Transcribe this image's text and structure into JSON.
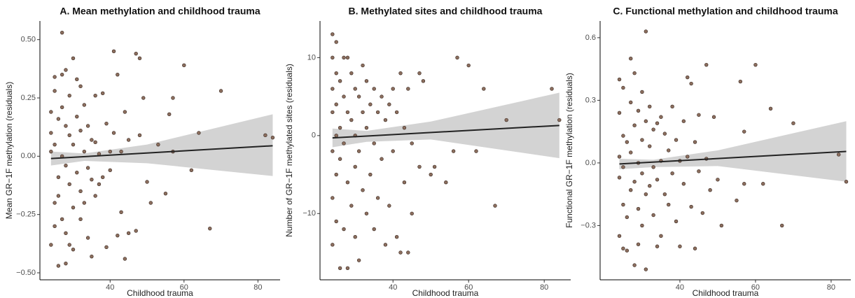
{
  "chart_data": [
    {
      "type": "scatter",
      "title": "A. Mean methylation and childhood trauma",
      "x_label": "Childhood trauma",
      "y_label": "Mean GR−1F methylation (residuals)",
      "xlim": [
        21,
        86
      ],
      "ylim": [
        -0.53,
        0.58
      ],
      "xticks": [
        40,
        60,
        80
      ],
      "yticks": [
        {
          "value": -0.5,
          "label": "−0.50"
        },
        {
          "value": -0.25,
          "label": "−0.25"
        },
        {
          "value": 0,
          "label": "0.00"
        },
        {
          "value": 0.25,
          "label": "0.25"
        },
        {
          "value": 0.5,
          "label": "0.50"
        }
      ],
      "color": "#8c6e5e",
      "fit_color": "#222222",
      "band_color": "#d3d3d3",
      "x": [
        24,
        24,
        24,
        24,
        25,
        25,
        25,
        25,
        25,
        26,
        26,
        26,
        26,
        27,
        27,
        27,
        27,
        27,
        28,
        28,
        28,
        28,
        28,
        29,
        29,
        29,
        29,
        30,
        30,
        30,
        30,
        31,
        31,
        31,
        32,
        32,
        32,
        32,
        33,
        33,
        33,
        34,
        34,
        34,
        35,
        35,
        35,
        36,
        36,
        36,
        37,
        37,
        38,
        38,
        39,
        39,
        40,
        40,
        41,
        41,
        42,
        42,
        43,
        43,
        44,
        44,
        45,
        45,
        47,
        47,
        48,
        48,
        49,
        50,
        51,
        53,
        55,
        56,
        57,
        57,
        60,
        62,
        64,
        67,
        70,
        82,
        84
      ],
      "values": [
        -0.38,
        0.19,
        0.1,
        0.02,
        0.28,
        0.34,
        -0.2,
        -0.3,
        0.05,
        -0.47,
        0.16,
        -0.09,
        -0.17,
        0.53,
        0.35,
        0.21,
        -0.27,
        0.0,
        -0.46,
        0.37,
        0.13,
        -0.04,
        -0.33,
        0.26,
        0.09,
        -0.12,
        -0.38,
        0.42,
        0.05,
        -0.22,
        -0.4,
        0.33,
        0.17,
        -0.07,
        0.3,
        0.11,
        -0.15,
        -0.27,
        0.22,
        0.02,
        -0.2,
        0.13,
        -0.05,
        -0.35,
        0.07,
        -0.1,
        -0.43,
        0.26,
        0.06,
        -0.17,
        -0.12,
        0.01,
        0.27,
        -0.09,
        0.14,
        -0.39,
        0.02,
        -0.06,
        0.45,
        0.1,
        0.35,
        -0.34,
        0.02,
        -0.24,
        0.19,
        -0.44,
        0.07,
        -0.33,
        0.44,
        -0.32,
        0.09,
        0.42,
        0.25,
        -0.11,
        -0.2,
        0.05,
        -0.16,
        0.18,
        0.25,
        0.02,
        0.39,
        -0.06,
        0.1,
        -0.31,
        0.28,
        0.09,
        0.08
      ],
      "fit": {
        "x": [
          24,
          84
        ],
        "values": [
          -0.01,
          0.045
        ]
      },
      "band": {
        "x": [
          24,
          33,
          50,
          84
        ],
        "upper": [
          0.02,
          0.012,
          0.05,
          0.18
        ],
        "lower": [
          -0.04,
          -0.02,
          -0.03,
          -0.085
        ]
      }
    },
    {
      "type": "scatter",
      "title": "B. Methylated sites and childhood trauma",
      "x_label": "Childhood trauma",
      "y_label": "Number of GR−1F methylated sites (residuals)",
      "xlim": [
        20.7,
        87
      ],
      "ylim": [
        -18.5,
        14.7
      ],
      "xticks": [
        40,
        60,
        80
      ],
      "yticks": [
        {
          "value": -10,
          "label": "−10"
        },
        0,
        10
      ],
      "color": "#8c6e5e",
      "fit_color": "#222222",
      "band_color": "#d3d3d3",
      "x": [
        24,
        24,
        24,
        24,
        24,
        24,
        24,
        25,
        25,
        25,
        25,
        25,
        25,
        26,
        26,
        26,
        26,
        27,
        27,
        27,
        27,
        28,
        28,
        28,
        28,
        29,
        29,
        29,
        30,
        30,
        30,
        30,
        31,
        31,
        31,
        32,
        32,
        32,
        33,
        33,
        33,
        34,
        34,
        35,
        35,
        35,
        36,
        36,
        37,
        37,
        38,
        38,
        39,
        39,
        40,
        40,
        41,
        41,
        42,
        42,
        43,
        43,
        44,
        44,
        45,
        45,
        47,
        47,
        48,
        50,
        51,
        54,
        56,
        57,
        60,
        62,
        64,
        67,
        70,
        82,
        84
      ],
      "values": [
        13,
        10,
        6,
        3,
        -2,
        -8,
        -14,
        12,
        8,
        4,
        0,
        -5,
        -11,
        7,
        1,
        -3,
        -17,
        10,
        5,
        -1,
        -12,
        10,
        3,
        -6,
        -17,
        8,
        2,
        -9,
        6,
        0,
        -4,
        -13,
        5,
        -2,
        -16,
        9,
        3,
        -7,
        7,
        1,
        -10,
        4,
        -5,
        6,
        -1,
        -12,
        3,
        -8,
        5,
        -3,
        2,
        -14,
        4,
        -9,
        6,
        -2,
        3,
        -13,
        8,
        -15,
        1,
        -6,
        6,
        -15,
        -1,
        -10,
        8,
        -4,
        7,
        -5,
        -4,
        -6,
        -2,
        10,
        9,
        -2,
        6,
        -9,
        2,
        6,
        2
      ],
      "fit": {
        "x": [
          24,
          84
        ],
        "values": [
          -0.3,
          1.3
        ]
      },
      "band": {
        "x": [
          24,
          33,
          50,
          84
        ],
        "upper": [
          0.9,
          0.6,
          1.8,
          5.5
        ],
        "lower": [
          -1.5,
          -0.8,
          -0.5,
          -2.9
        ]
      }
    },
    {
      "type": "scatter",
      "title": "C. Functional methylation and childhood trauma",
      "x_label": "Childhood trauma",
      "y_label": "Functional GR−1F methylation (residuals)",
      "xlim": [
        18.9,
        85.2
      ],
      "ylim": [
        -0.56,
        0.68
      ],
      "xticks": [
        40,
        60,
        80
      ],
      "yticks": [
        {
          "value": -0.3,
          "label": "−0.3"
        },
        {
          "value": 0,
          "label": "0.0"
        },
        0.3,
        0.6
      ],
      "color": "#8c6e5e",
      "fit_color": "#222222",
      "band_color": "#d3d3d3",
      "x": [
        24,
        24,
        24,
        24,
        24,
        25,
        25,
        25,
        25,
        25,
        26,
        26,
        26,
        27,
        27,
        27,
        27,
        28,
        28,
        28,
        28,
        29,
        29,
        29,
        29,
        30,
        30,
        30,
        30,
        31,
        31,
        31,
        31,
        32,
        32,
        32,
        33,
        33,
        33,
        34,
        34,
        34,
        35,
        35,
        35,
        36,
        36,
        37,
        37,
        38,
        38,
        39,
        39,
        40,
        40,
        41,
        41,
        42,
        42,
        43,
        43,
        44,
        44,
        45,
        45,
        46,
        47,
        47,
        48,
        49,
        50,
        51,
        55,
        56,
        57,
        57,
        60,
        62,
        64,
        67,
        70,
        82,
        84
      ],
      "values": [
        0.4,
        0.24,
        0.03,
        -0.07,
        -0.35,
        0.36,
        0.13,
        -0.02,
        -0.2,
        -0.41,
        0.1,
        -0.26,
        -0.42,
        0.5,
        0.29,
        0.05,
        -0.13,
        0.43,
        0.18,
        -0.09,
        -0.49,
        0.25,
        0.0,
        -0.22,
        -0.39,
        0.34,
        0.11,
        -0.05,
        -0.3,
        0.63,
        0.2,
        -0.15,
        -0.51,
        0.27,
        0.08,
        -0.11,
        0.16,
        -0.02,
        -0.25,
        0.19,
        -0.08,
        -0.4,
        0.22,
        0.01,
        -0.35,
        0.14,
        -0.15,
        0.06,
        -0.2,
        0.27,
        -0.05,
        0.11,
        -0.28,
        0.01,
        -0.4,
        0.2,
        -0.1,
        0.41,
        0.03,
        0.38,
        -0.21,
        0.1,
        -0.41,
        -0.04,
        0.23,
        -0.24,
        0.47,
        0.02,
        -0.13,
        0.22,
        -0.08,
        -0.3,
        -0.18,
        0.39,
        0.15,
        -0.1,
        0.47,
        -0.1,
        0.26,
        -0.3,
        0.19,
        0.04,
        -0.09
      ],
      "fit": {
        "x": [
          24,
          84
        ],
        "values": [
          -0.005,
          0.055
        ]
      },
      "band": {
        "x": [
          24,
          33,
          50,
          84
        ],
        "upper": [
          0.02,
          0.015,
          0.06,
          0.2
        ],
        "lower": [
          -0.03,
          -0.02,
          -0.015,
          -0.09
        ]
      }
    }
  ]
}
